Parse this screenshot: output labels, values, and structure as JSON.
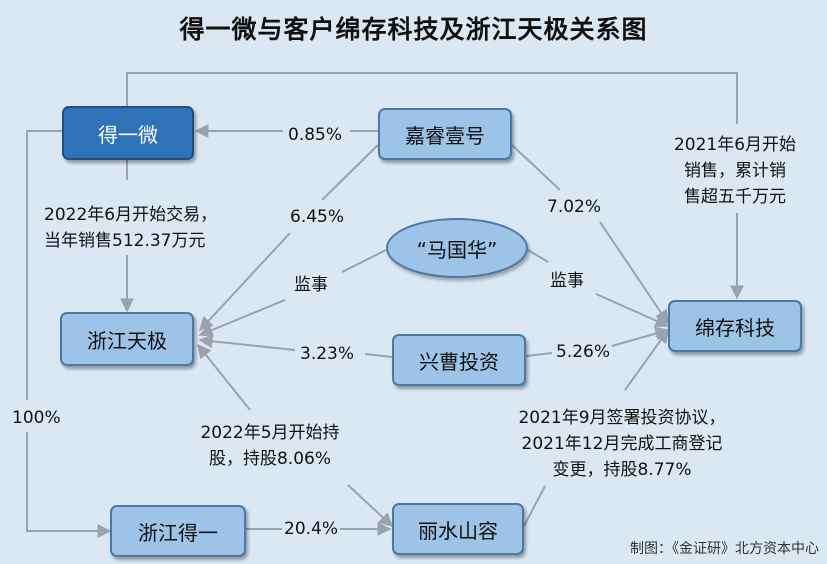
{
  "title": "得一微与客户绵存科技及浙江天极关系图",
  "nodes": {
    "deyiwei": "得一微",
    "jiarui": "嘉睿壹号",
    "maguohua": "“马国华”",
    "zhejiang_tianji": "浙江天极",
    "xingcao": "兴曹投资",
    "mianchun": "绵存科技",
    "zhejiang_deyi": "浙江得一",
    "lishui": "丽水山容"
  },
  "labels": {
    "pct_085": "0.85%",
    "pct_645": "6.45%",
    "pct_702": "7.02%",
    "pct_323": "3.23%",
    "pct_526": "5.26%",
    "pct_100": "100%",
    "pct_204": "20.4%",
    "jianshi_left": "监事",
    "jianshi_right": "监事",
    "trade_2022_line1": "2022年6月开始交易，",
    "trade_2022_line2": "当年销售512.37万元",
    "sales_2021_line1": "2021年6月开始",
    "sales_2021_line2": "销售，累计销",
    "sales_2021_line3": "售超五千万元",
    "hold_2022_line1": "2022年5月开始持",
    "hold_2022_line2": "股，持股8.06%",
    "invest_2021_line1": "2021年9月签署投资协议，",
    "invest_2021_line2": "2021年12月完成工商登记",
    "invest_2021_line3": "变更，持股8.77%"
  },
  "credit": "制图：《金证研》北方资本中心",
  "colors": {
    "background": "#dbe8f4",
    "node_fill": "#9dc3e6",
    "node_dark": "#2e72b8",
    "line": "#9aa3ad"
  }
}
